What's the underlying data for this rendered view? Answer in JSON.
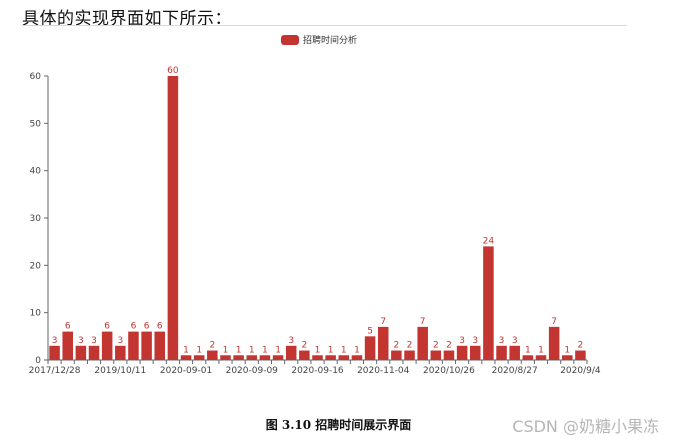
{
  "page": {
    "heading": "具体的实现界面如下所示：",
    "caption": "图 3.10  招聘时间展示界面",
    "watermark": "CSDN @奶糖小果冻"
  },
  "colors": {
    "bar": "#c23531",
    "axis": "#666666"
  },
  "chart_data": {
    "type": "bar",
    "title": "",
    "xlabel": "",
    "ylabel": "",
    "ylim": [
      0,
      60
    ],
    "yticks": [
      0,
      10,
      20,
      30,
      40,
      50,
      60
    ],
    "grid": false,
    "legend": {
      "position": "top-center",
      "entries": [
        "招聘时间分析"
      ]
    },
    "x_tick_labels": [
      "2017/12/28",
      "2019/10/11",
      "2020-09-01",
      "2020-09-09",
      "2020-09-16",
      "2020-11-04",
      "2020/10/26",
      "2020/8/27",
      "2020/9/4"
    ],
    "x_tick_label_every": 5,
    "series": [
      {
        "name": "招聘时间分析",
        "values": [
          3,
          6,
          3,
          3,
          6,
          3,
          6,
          6,
          6,
          60,
          1,
          1,
          2,
          1,
          1,
          1,
          1,
          1,
          3,
          2,
          1,
          1,
          1,
          1,
          5,
          7,
          2,
          2,
          7,
          2,
          2,
          3,
          3,
          24,
          3,
          3,
          1,
          1,
          7,
          1,
          2
        ]
      }
    ]
  }
}
